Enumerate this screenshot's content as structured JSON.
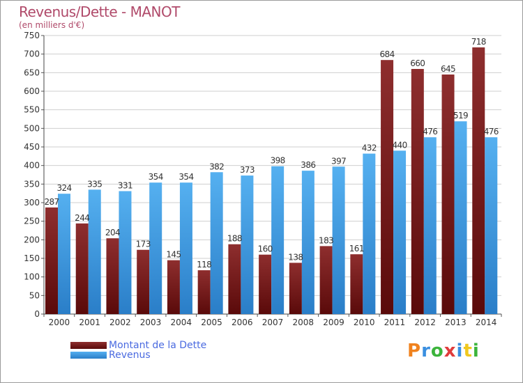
{
  "title": "Revenus/Dette - MANOT",
  "subtitle": "(en milliers d'€)",
  "logo": {
    "text": "Proxiti",
    "colors": [
      "#f0821e",
      "#3a8fe0",
      "#3cb43c",
      "#e03c3c",
      "#3a8fe0",
      "#f0c81e",
      "#3cb43c"
    ]
  },
  "chart_data": {
    "type": "bar",
    "categories": [
      "2000",
      "2001",
      "2002",
      "2003",
      "2004",
      "2005",
      "2006",
      "2007",
      "2008",
      "2009",
      "2010",
      "2011",
      "2012",
      "2013",
      "2014"
    ],
    "series": [
      {
        "name": "Montant de la Dette",
        "color": "#7a1e1e",
        "values": [
          287,
          244,
          204,
          173,
          145,
          118,
          188,
          160,
          138,
          183,
          161,
          684,
          660,
          645,
          718
        ]
      },
      {
        "name": "Revenus",
        "color": "#3a9ae0",
        "values": [
          324,
          335,
          331,
          354,
          354,
          382,
          373,
          398,
          386,
          397,
          432,
          440,
          476,
          519,
          476
        ]
      }
    ],
    "ylim": [
      0,
      750
    ],
    "yticks": [
      0,
      50,
      100,
      150,
      200,
      250,
      300,
      350,
      400,
      450,
      500,
      550,
      600,
      650,
      700,
      750
    ],
    "grid": true,
    "legend": "bottom-left"
  }
}
